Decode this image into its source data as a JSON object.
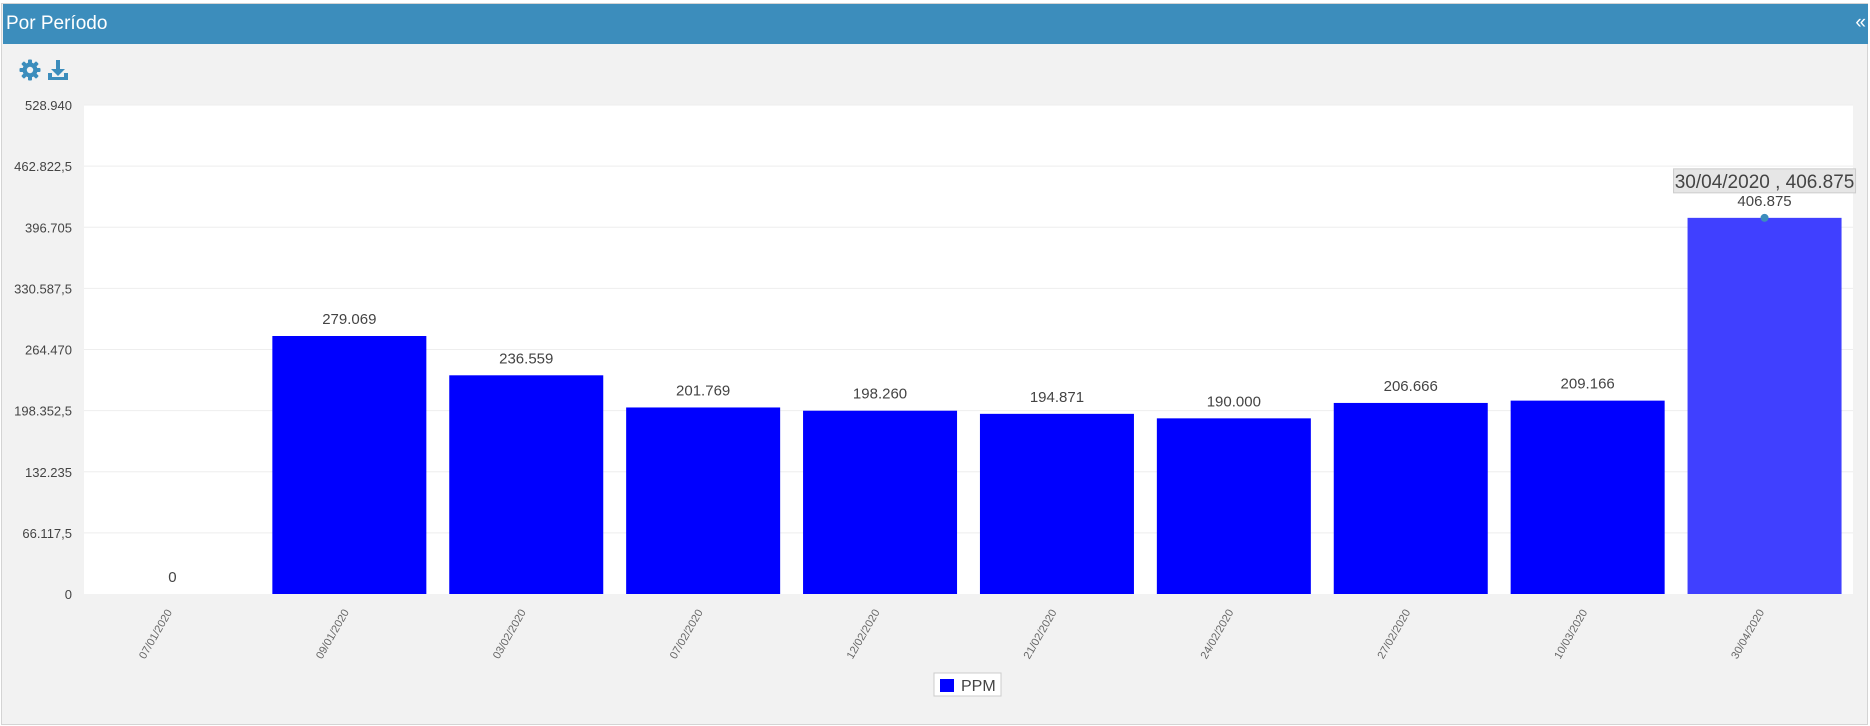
{
  "panel": {
    "title": "Por Período",
    "collapse_label": "«"
  },
  "toolbar": {
    "settings_icon": "gear-icon",
    "download_icon": "download-icon",
    "icon_color": "#3c8dbc"
  },
  "chart_data": {
    "type": "bar",
    "categories": [
      "07/01/2020",
      "09/01/2020",
      "03/02/2020",
      "07/02/2020",
      "12/02/2020",
      "21/02/2020",
      "24/02/2020",
      "27/02/2020",
      "10/03/2020",
      "30/04/2020"
    ],
    "series": [
      {
        "name": "PPM",
        "color": "#0000ff",
        "highlight_color": "#4040ff",
        "values": [
          0,
          279069,
          236559,
          201769,
          198260,
          194871,
          190000,
          206666,
          209166,
          406875
        ],
        "value_labels": [
          "0",
          "279.069",
          "236.559",
          "201.769",
          "198.260",
          "194.871",
          "190.000",
          "206.666",
          "209.166",
          "406.875"
        ]
      }
    ],
    "ylim": [
      0,
      528940
    ],
    "yticks": [
      0,
      66117.5,
      132235,
      198352.5,
      264470,
      330587.5,
      396705,
      462822.5,
      528940
    ],
    "ytick_labels": [
      "0",
      "66.117,5",
      "132.235",
      "198.352,5",
      "264.470",
      "330.587,5",
      "396.705",
      "462.822,5",
      "528.940"
    ],
    "tooltip": {
      "text": "30/04/2020 , 406.875",
      "category_index": 9
    },
    "legend": {
      "placement": "bottom-center",
      "entries": [
        "PPM"
      ]
    },
    "grid": true,
    "title": "",
    "xlabel": "",
    "ylabel": ""
  }
}
